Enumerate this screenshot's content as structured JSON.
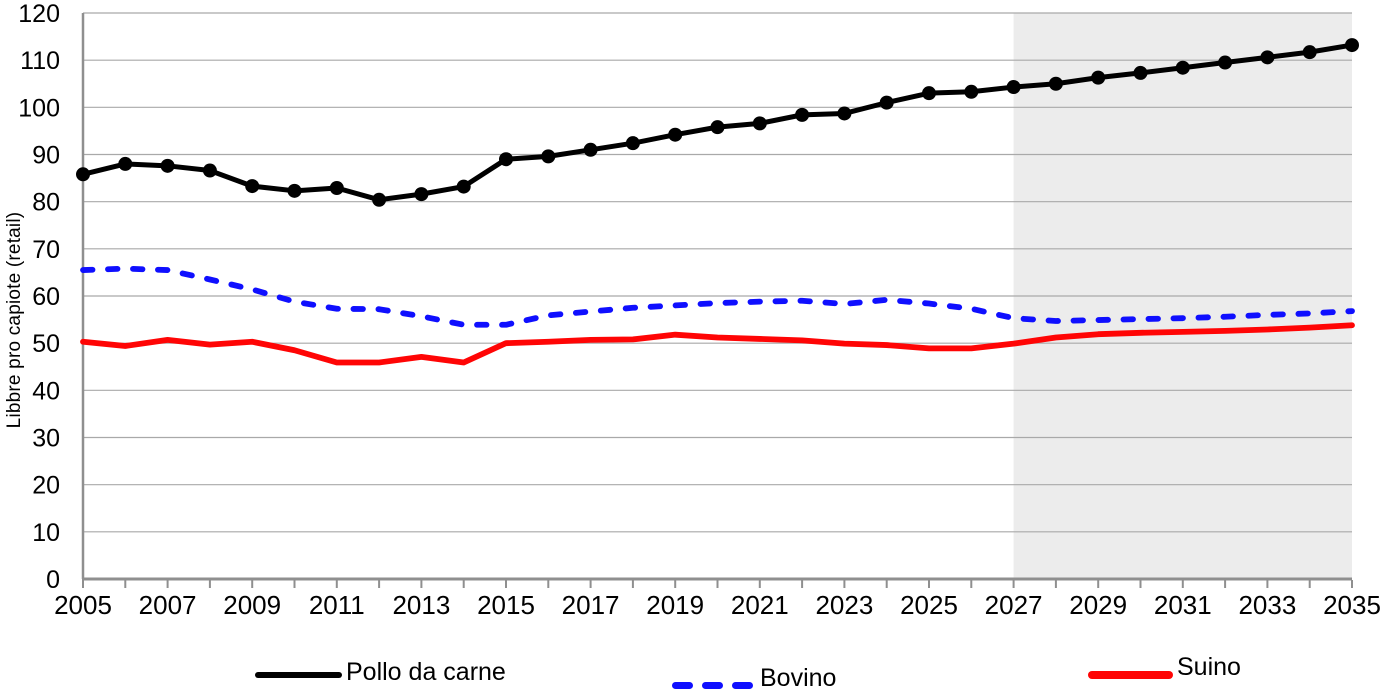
{
  "chart_data": {
    "type": "line",
    "title": "",
    "xlabel": "",
    "ylabel": "Libbre pro capiote (retail)",
    "ylim": [
      0,
      120
    ],
    "ytick_step": 10,
    "grid": true,
    "legend_position": "bottom",
    "x": [
      2005,
      2006,
      2007,
      2008,
      2009,
      2010,
      2011,
      2012,
      2013,
      2014,
      2015,
      2016,
      2017,
      2018,
      2019,
      2020,
      2021,
      2022,
      2023,
      2024,
      2025,
      2026,
      2027,
      2028,
      2029,
      2030,
      2031,
      2032,
      2033,
      2034,
      2035
    ],
    "xtick_labels": [
      "2005",
      "2007",
      "2009",
      "2011",
      "2013",
      "2015",
      "2017",
      "2019",
      "2021",
      "2023",
      "2025",
      "2027",
      "2029",
      "2031",
      "2033",
      "2035"
    ],
    "projection_start": 2027,
    "projection_fill": "#ececec",
    "gridline_color": "#a9a9a9",
    "axis_color": "#8f8f8f",
    "series": [
      {
        "name": "Pollo da carne",
        "color": "#000000",
        "line_style": "solid",
        "markers": true,
        "values": [
          85.8,
          88.0,
          87.6,
          86.6,
          83.3,
          82.3,
          82.9,
          80.4,
          81.6,
          83.2,
          89.0,
          89.6,
          91.0,
          92.4,
          94.2,
          95.8,
          96.6,
          98.4,
          98.7,
          101.0,
          103.0,
          103.3,
          104.3,
          105.0,
          106.3,
          107.3,
          108.4,
          109.5,
          110.6,
          111.7,
          113.2
        ]
      },
      {
        "name": "Bovino",
        "color": "#0f0fff",
        "line_style": "dashed",
        "markers": false,
        "values": [
          65.5,
          65.8,
          65.5,
          63.5,
          61.4,
          58.8,
          57.3,
          57.2,
          55.7,
          53.9,
          53.9,
          55.9,
          56.7,
          57.5,
          58.0,
          58.5,
          58.8,
          59.0,
          58.3,
          59.2,
          58.4,
          57.3,
          55.3,
          54.7,
          54.9,
          55.1,
          55.3,
          55.6,
          56.0,
          56.3,
          56.8
        ]
      },
      {
        "name": "Suino",
        "color": "#ff0505",
        "line_style": "solid",
        "markers": false,
        "values": [
          50.3,
          49.4,
          50.7,
          49.7,
          50.3,
          48.5,
          45.9,
          45.9,
          47.1,
          45.9,
          50.0,
          50.3,
          50.7,
          50.8,
          51.8,
          51.2,
          50.9,
          50.6,
          49.9,
          49.6,
          48.9,
          48.9,
          49.9,
          51.2,
          51.9,
          52.2,
          52.4,
          52.6,
          52.9,
          53.3,
          53.8
        ]
      }
    ]
  }
}
